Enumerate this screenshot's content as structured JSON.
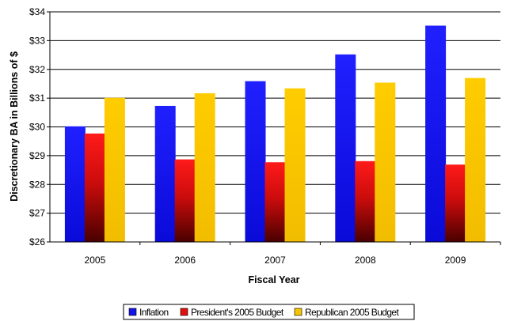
{
  "chart_data": {
    "type": "bar",
    "categories": [
      "2005",
      "2006",
      "2007",
      "2008",
      "2009"
    ],
    "series": [
      {
        "name": "Inflation",
        "values": [
          30.02,
          30.73,
          31.59,
          32.52,
          33.52
        ],
        "color": "#1414e6"
      },
      {
        "name": "President's 2005 Budget",
        "values": [
          29.77,
          28.87,
          28.77,
          28.81,
          28.69
        ],
        "color": "#e01010"
      },
      {
        "name": "Republican 2005 Budget",
        "values": [
          31.01,
          31.17,
          31.34,
          31.54,
          31.7
        ],
        "color": "#f5c400"
      }
    ],
    "yticks": [
      "$26",
      "$27",
      "$28",
      "$29",
      "$30",
      "$31",
      "$32",
      "$33",
      "$34"
    ],
    "ylim": [
      26,
      34
    ],
    "xlabel": "Fiscal Year",
    "ylabel": "Discretionary BA in Billions of $",
    "grid": true,
    "legend_position": "bottom"
  }
}
